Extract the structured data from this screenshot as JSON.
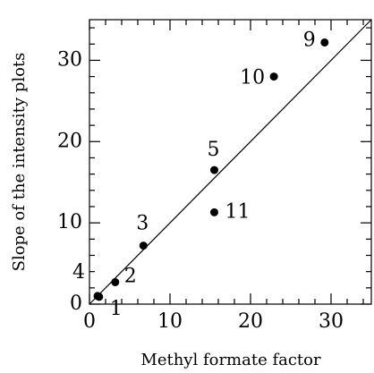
{
  "chart_data": {
    "type": "scatter",
    "x_label": "Methyl formate factor",
    "y_label": "Slope of the intensity plots",
    "labels": [
      "1",
      "2",
      "3",
      "4",
      "5",
      "9",
      "10",
      "11"
    ],
    "x": [
      1.2,
      3.2,
      6.7,
      1.0,
      15.5,
      29.2,
      22.9,
      15.5
    ],
    "y": [
      0.9,
      2.7,
      7.2,
      1.0,
      16.5,
      32.2,
      28.0,
      11.3
    ],
    "color": "#000000",
    "fit_line": {
      "x": [
        0,
        35
      ],
      "y": [
        0,
        35
      ]
    },
    "xlim": [
      0,
      35
    ],
    "ylim": [
      0,
      35
    ],
    "xticks": [
      0,
      10,
      20,
      30
    ],
    "yticks": [
      0,
      10,
      20,
      30
    ],
    "minor_xticks": [
      2,
      4,
      6,
      8,
      12,
      14,
      16,
      18,
      22,
      24,
      26,
      28,
      32,
      34
    ],
    "minor_yticks": [
      2,
      4,
      6,
      8,
      12,
      14,
      16,
      18,
      22,
      24,
      26,
      28,
      32,
      34
    ]
  }
}
